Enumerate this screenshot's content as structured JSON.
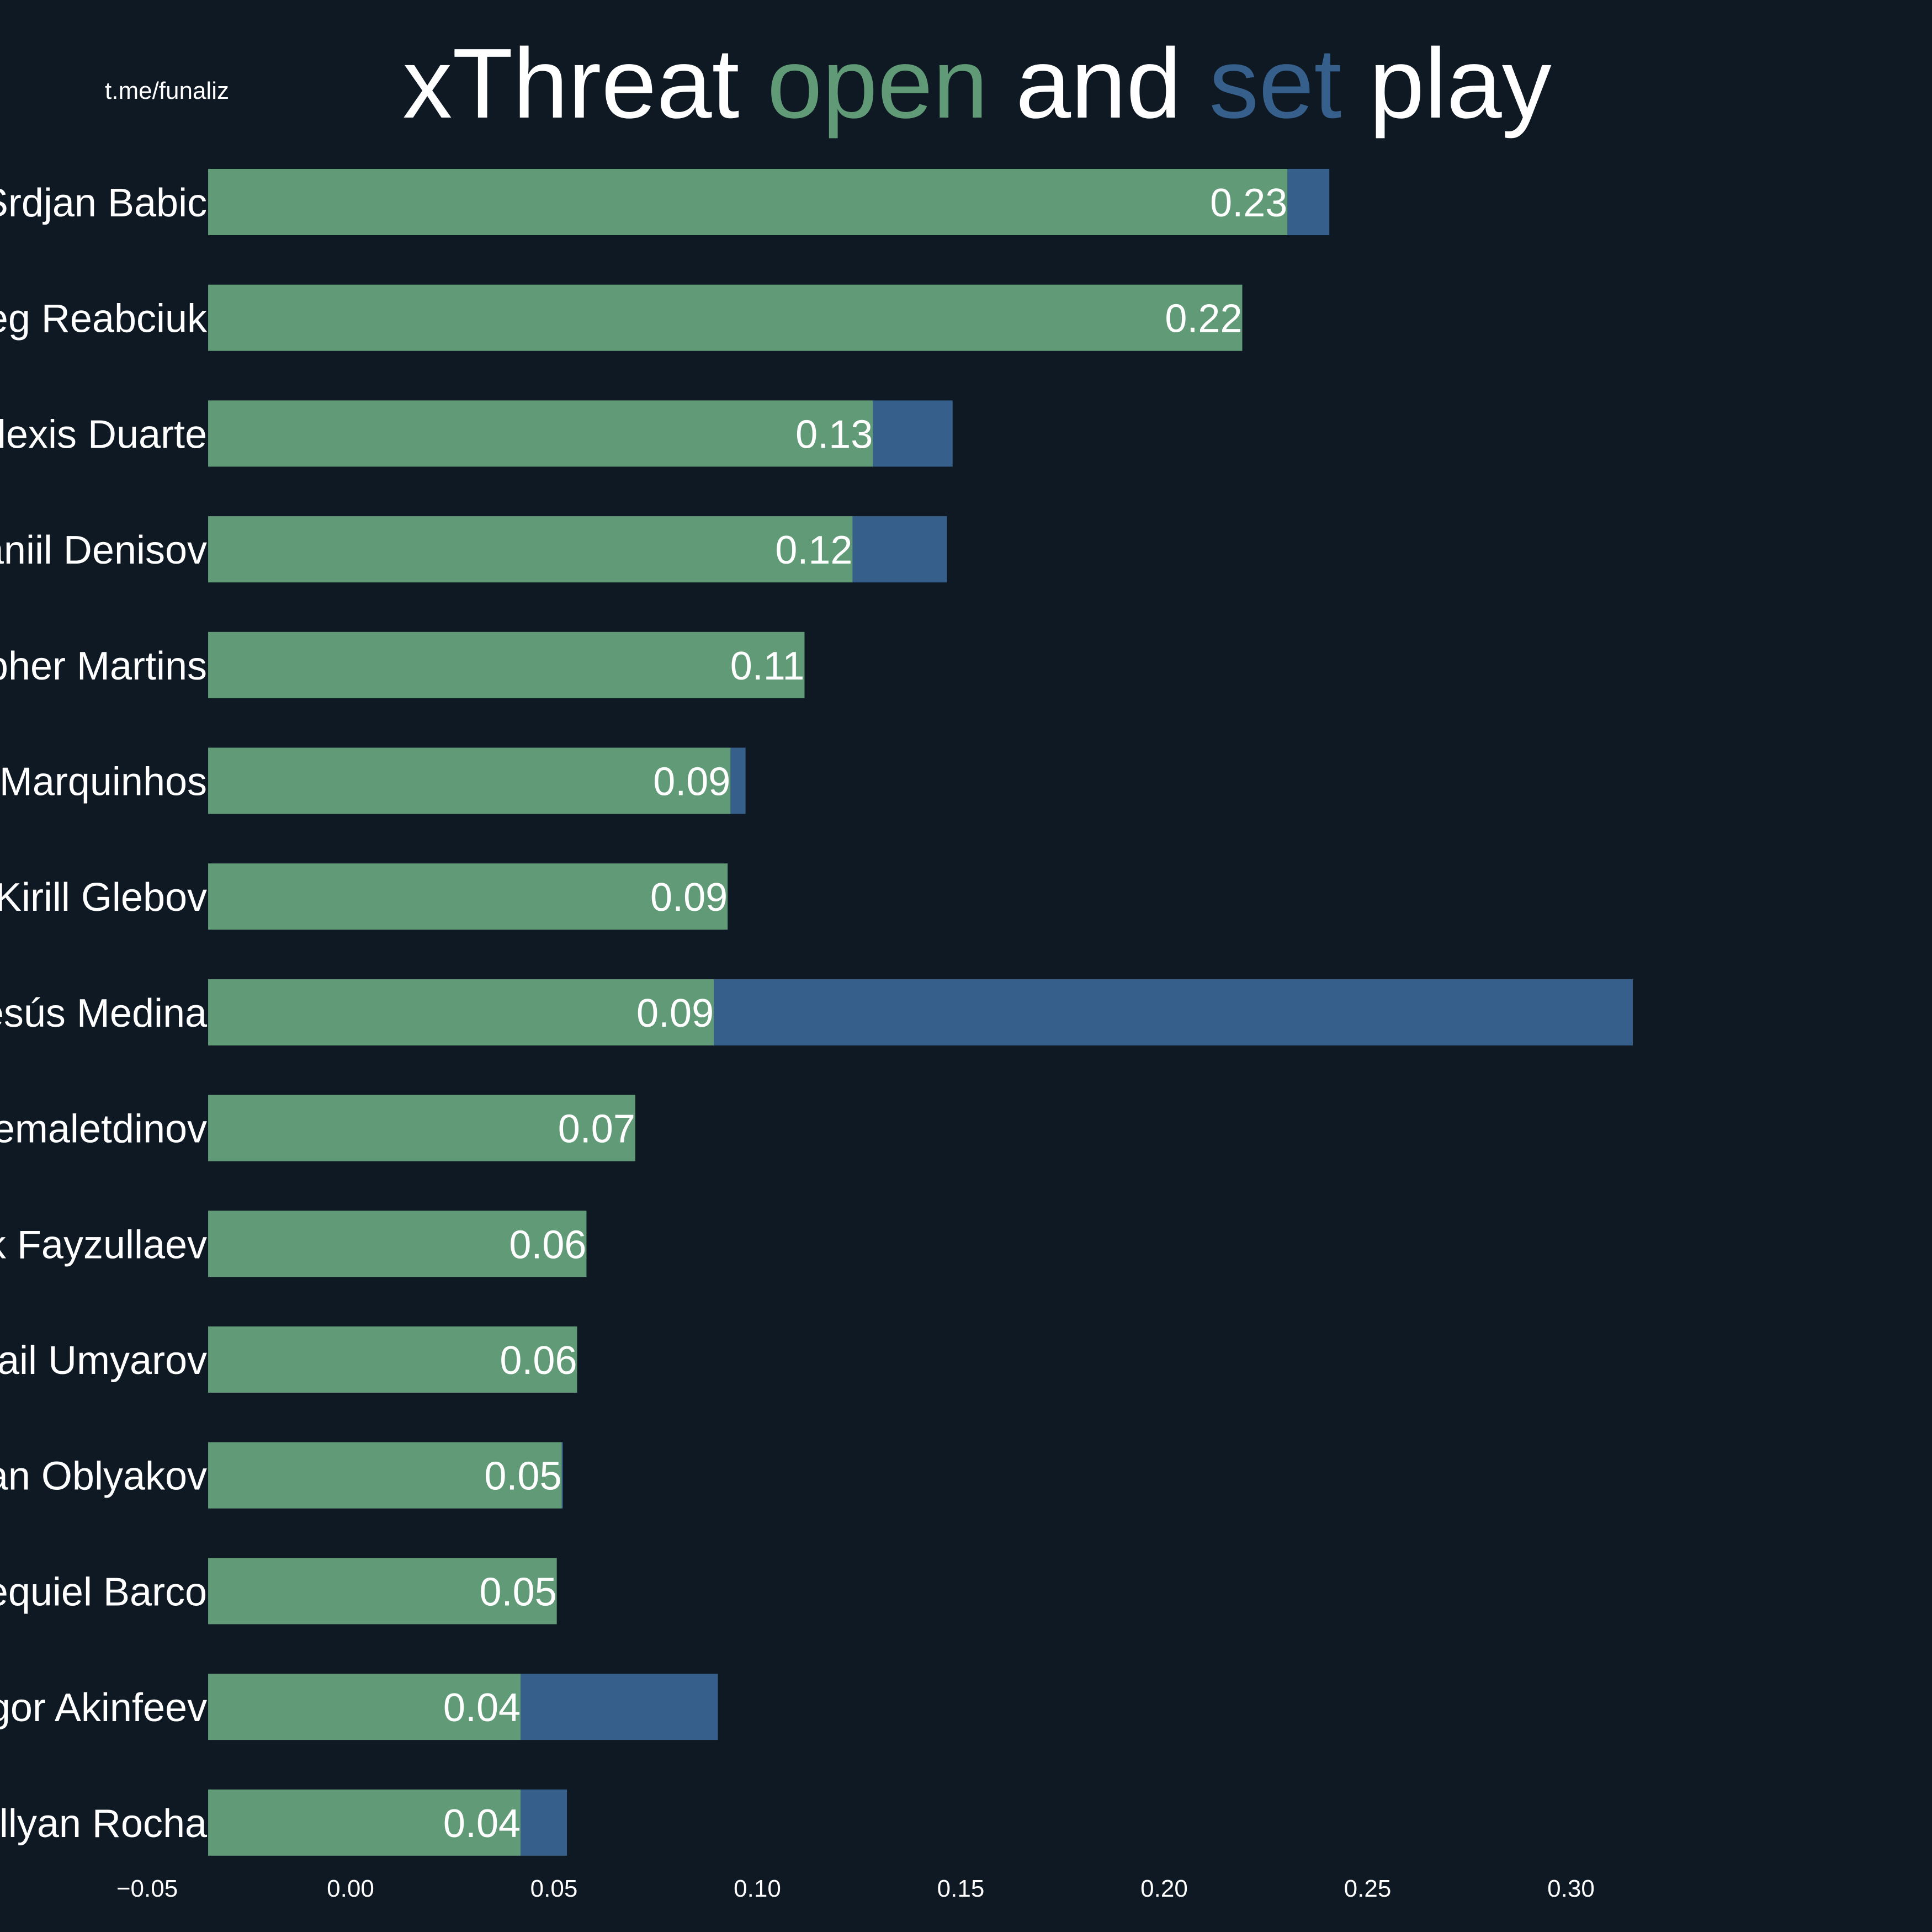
{
  "watermark": "t.me/funaliz",
  "title": {
    "prefix": "xThreat ",
    "open_word": "open",
    "middle": " and ",
    "set_word": "set",
    "suffix": " play"
  },
  "colors": {
    "background": "#0f1923",
    "open_play": "#619a76",
    "set_play": "#36608b",
    "text": "#ffffff"
  },
  "chart_data": {
    "type": "bar",
    "orientation": "horizontal",
    "stacked": true,
    "categories": [
      "Srdjan Babic",
      "Oleg Reabciuk",
      "Alexis Duarte",
      "Daniil Denisov",
      "Christopher Martins",
      "Marquinhos",
      "Kirill Glebov",
      "Jesús Medina",
      "Rifat Zhemaletdinov",
      "Abbosbek Fayzullaev",
      "Nail Umyarov",
      "Ivan Oblyakov",
      "Esequiel Barco",
      "Igor Akinfeev",
      "Willyan Rocha"
    ],
    "series": [
      {
        "name": "open",
        "values": [
          0.23,
          0.22,
          0.13,
          0.12,
          0.11,
          0.09,
          0.09,
          0.09,
          0.07,
          0.06,
          0.06,
          0.05,
          0.05,
          0.04,
          0.04
        ],
        "ends": [
          0.2303,
          0.2192,
          0.1284,
          0.1234,
          0.1116,
          0.0934,
          0.0927,
          0.0893,
          0.07,
          0.058,
          0.0557,
          0.0519,
          0.0507,
          0.0418,
          0.0418
        ]
      },
      {
        "name": "set",
        "ends": [
          0.2406,
          0.2192,
          0.148,
          0.1466,
          0.1116,
          0.0971,
          0.0927,
          0.3152,
          0.07,
          0.058,
          0.0557,
          0.0522,
          0.0507,
          0.0903,
          0.0532
        ]
      }
    ],
    "bar_start": -0.035,
    "data_labels": [
      "0.23",
      "0.22",
      "0.13",
      "0.12",
      "0.11",
      "0.09",
      "0.09",
      "0.09",
      "0.07",
      "0.06",
      "0.06",
      "0.05",
      "0.05",
      "0.04",
      "0.04"
    ],
    "xticks": [
      -0.05,
      0.0,
      0.05,
      0.1,
      0.15,
      0.2,
      0.25,
      0.3
    ],
    "xtick_labels": [
      "−0.05",
      "0.00",
      "0.05",
      "0.10",
      "0.15",
      "0.20",
      "0.25",
      "0.30"
    ],
    "xlim": [
      -0.05,
      0.32
    ],
    "grid": false,
    "legend": "none (colored words in title)"
  }
}
